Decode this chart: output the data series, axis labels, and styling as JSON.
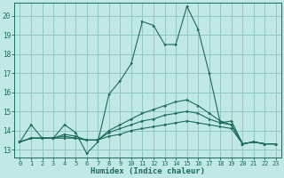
{
  "xlabel": "Humidex (Indice chaleur)",
  "background_color": "#c0e8e4",
  "grid_color": "#90c8c4",
  "line_color": "#1a6b5a",
  "xlim": [
    -0.5,
    23.5
  ],
  "ylim": [
    12.6,
    20.7
  ],
  "yticks": [
    13,
    14,
    15,
    16,
    17,
    18,
    19,
    20
  ],
  "xticks": [
    0,
    1,
    2,
    3,
    4,
    5,
    6,
    7,
    8,
    9,
    10,
    11,
    12,
    13,
    14,
    15,
    16,
    17,
    18,
    19,
    20,
    21,
    22,
    23
  ],
  "xtick_labels": [
    "0",
    "1",
    "2",
    "3",
    "4",
    "5",
    "6",
    "7",
    "8",
    "9",
    "10",
    "11",
    "12",
    "13",
    "14",
    "15",
    "16",
    "17",
    "18",
    "19",
    "20",
    "21",
    "22",
    "23"
  ],
  "lines": [
    {
      "x": [
        0,
        1,
        2,
        3,
        4,
        5,
        6,
        7,
        8,
        9,
        10,
        11,
        12,
        13,
        14,
        15,
        16,
        17,
        18,
        19,
        20,
        21,
        22,
        23
      ],
      "y": [
        13.4,
        14.3,
        13.6,
        13.6,
        14.3,
        13.9,
        12.8,
        13.4,
        15.9,
        16.6,
        17.5,
        19.7,
        19.5,
        18.5,
        18.5,
        20.5,
        19.3,
        17.0,
        14.4,
        14.5,
        13.3,
        13.4,
        13.3,
        13.3
      ]
    },
    {
      "x": [
        0,
        1,
        2,
        3,
        4,
        5,
        6,
        7,
        8,
        9,
        10,
        11,
        12,
        13,
        14,
        15,
        16,
        17,
        18,
        19,
        20,
        21,
        22,
        23
      ],
      "y": [
        13.4,
        13.6,
        13.6,
        13.6,
        13.6,
        13.6,
        13.5,
        13.5,
        13.7,
        13.8,
        14.0,
        14.1,
        14.2,
        14.3,
        14.4,
        14.5,
        14.4,
        14.3,
        14.2,
        14.1,
        13.3,
        13.4,
        13.3,
        13.3
      ]
    },
    {
      "x": [
        0,
        1,
        2,
        3,
        4,
        5,
        6,
        7,
        8,
        9,
        10,
        11,
        12,
        13,
        14,
        15,
        16,
        17,
        18,
        19,
        20,
        21,
        22,
        23
      ],
      "y": [
        13.4,
        13.6,
        13.6,
        13.6,
        13.7,
        13.6,
        13.5,
        13.5,
        13.9,
        14.1,
        14.3,
        14.5,
        14.6,
        14.8,
        14.9,
        15.0,
        14.9,
        14.6,
        14.4,
        14.3,
        13.3,
        13.4,
        13.3,
        13.3
      ]
    },
    {
      "x": [
        0,
        1,
        2,
        3,
        4,
        5,
        6,
        7,
        8,
        9,
        10,
        11,
        12,
        13,
        14,
        15,
        16,
        17,
        18,
        19,
        20,
        21,
        22,
        23
      ],
      "y": [
        13.4,
        13.6,
        13.6,
        13.6,
        13.8,
        13.7,
        13.5,
        13.5,
        14.0,
        14.3,
        14.6,
        14.9,
        15.1,
        15.3,
        15.5,
        15.6,
        15.3,
        14.9,
        14.5,
        14.3,
        13.3,
        13.4,
        13.3,
        13.3
      ]
    }
  ]
}
